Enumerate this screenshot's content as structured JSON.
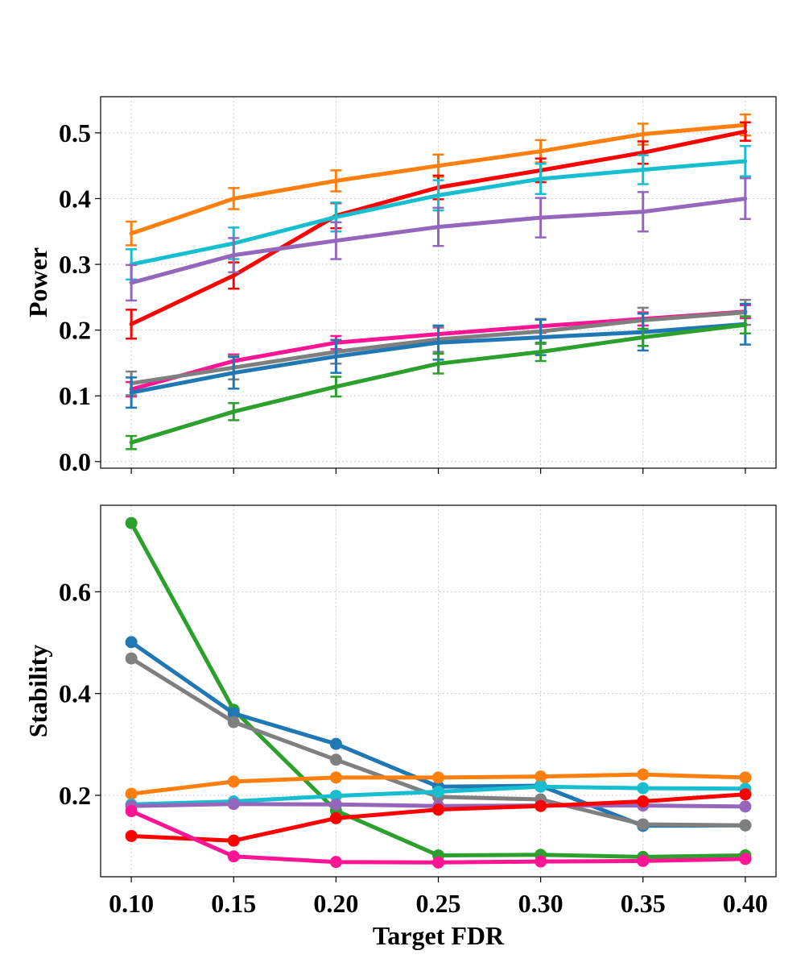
{
  "chart_data": [
    {
      "type": "line",
      "panel": "top",
      "ylabel": "Power",
      "xlabel": "",
      "ylim": [
        -0.01,
        0.555
      ],
      "yticks": [
        0.0,
        0.1,
        0.2,
        0.3,
        0.4,
        0.5
      ],
      "ytick_labels": [
        "0.0",
        "0.1",
        "0.2",
        "0.3",
        "0.4",
        "0.5"
      ],
      "x": [
        0.1,
        0.15,
        0.2,
        0.25,
        0.3,
        0.35,
        0.4
      ],
      "grid": true,
      "error_bars": true,
      "series": [
        {
          "color": "#ff7f0e",
          "values": [
            0.347,
            0.4,
            0.427,
            0.45,
            0.472,
            0.498,
            0.512
          ],
          "errors": [
            0.018,
            0.016,
            0.016,
            0.017,
            0.017,
            0.016,
            0.016
          ]
        },
        {
          "color": "#ff0000",
          "values": [
            0.209,
            0.283,
            0.374,
            0.417,
            0.443,
            0.47,
            0.502
          ],
          "errors": [
            0.022,
            0.02,
            0.019,
            0.018,
            0.018,
            0.017,
            0.014
          ]
        },
        {
          "color": "#17becf",
          "values": [
            0.3,
            0.332,
            0.372,
            0.405,
            0.43,
            0.444,
            0.457
          ],
          "errors": [
            0.023,
            0.024,
            0.022,
            0.023,
            0.023,
            0.022,
            0.023
          ]
        },
        {
          "color": "#9467bd",
          "values": [
            0.272,
            0.314,
            0.336,
            0.357,
            0.371,
            0.38,
            0.4
          ],
          "errors": [
            0.027,
            0.026,
            0.028,
            0.029,
            0.03,
            0.03,
            0.031
          ]
        },
        {
          "color": "#ff1493",
          "values": [
            0.11,
            0.153,
            0.181,
            0.194,
            0.206,
            0.217,
            0.228
          ],
          "errors": [
            0.011,
            0.01,
            0.01,
            0.01,
            0.01,
            0.01,
            0.01
          ]
        },
        {
          "color": "#7f7f7f",
          "values": [
            0.119,
            0.143,
            0.167,
            0.186,
            0.198,
            0.215,
            0.227
          ],
          "errors": [
            0.018,
            0.018,
            0.018,
            0.019,
            0.019,
            0.019,
            0.019
          ]
        },
        {
          "color": "#1f77b4",
          "values": [
            0.105,
            0.135,
            0.16,
            0.181,
            0.189,
            0.197,
            0.209
          ],
          "errors": [
            0.023,
            0.024,
            0.025,
            0.026,
            0.027,
            0.028,
            0.031
          ]
        },
        {
          "color": "#2ca02c",
          "values": [
            0.029,
            0.076,
            0.114,
            0.149,
            0.167,
            0.189,
            0.208
          ],
          "errors": [
            0.01,
            0.013,
            0.015,
            0.015,
            0.014,
            0.013,
            0.013
          ]
        }
      ]
    },
    {
      "type": "line",
      "panel": "bottom",
      "ylabel": "Stability",
      "xlabel": "Target FDR",
      "ylim": [
        0.04,
        0.77
      ],
      "yticks": [
        0.2,
        0.4,
        0.6
      ],
      "ytick_labels": [
        "0.2",
        "0.4",
        "0.6"
      ],
      "x": [
        0.1,
        0.15,
        0.2,
        0.25,
        0.3,
        0.35,
        0.4
      ],
      "xtick_labels": [
        "0.10",
        "0.15",
        "0.20",
        "0.25",
        "0.30",
        "0.35",
        "0.40"
      ],
      "grid": true,
      "markers": true,
      "series": [
        {
          "color": "#2ca02c",
          "values": [
            0.735,
            0.368,
            0.17,
            0.082,
            0.083,
            0.079,
            0.082
          ]
        },
        {
          "color": "#1f77b4",
          "values": [
            0.501,
            0.361,
            0.301,
            0.217,
            0.219,
            0.14,
            0.141
          ]
        },
        {
          "color": "#7f7f7f",
          "values": [
            0.469,
            0.344,
            0.27,
            0.197,
            0.192,
            0.143,
            0.141
          ]
        },
        {
          "color": "#ff7f0e",
          "values": [
            0.203,
            0.227,
            0.235,
            0.235,
            0.237,
            0.241,
            0.235
          ]
        },
        {
          "color": "#17becf",
          "values": [
            0.182,
            0.188,
            0.199,
            0.207,
            0.217,
            0.214,
            0.213
          ]
        },
        {
          "color": "#9467bd",
          "values": [
            0.179,
            0.183,
            0.182,
            0.179,
            0.18,
            0.18,
            0.178
          ]
        },
        {
          "color": "#ff0000",
          "values": [
            0.12,
            0.111,
            0.155,
            0.172,
            0.179,
            0.188,
            0.202
          ]
        },
        {
          "color": "#ff1493",
          "values": [
            0.169,
            0.08,
            0.069,
            0.068,
            0.07,
            0.071,
            0.075
          ]
        }
      ]
    }
  ]
}
